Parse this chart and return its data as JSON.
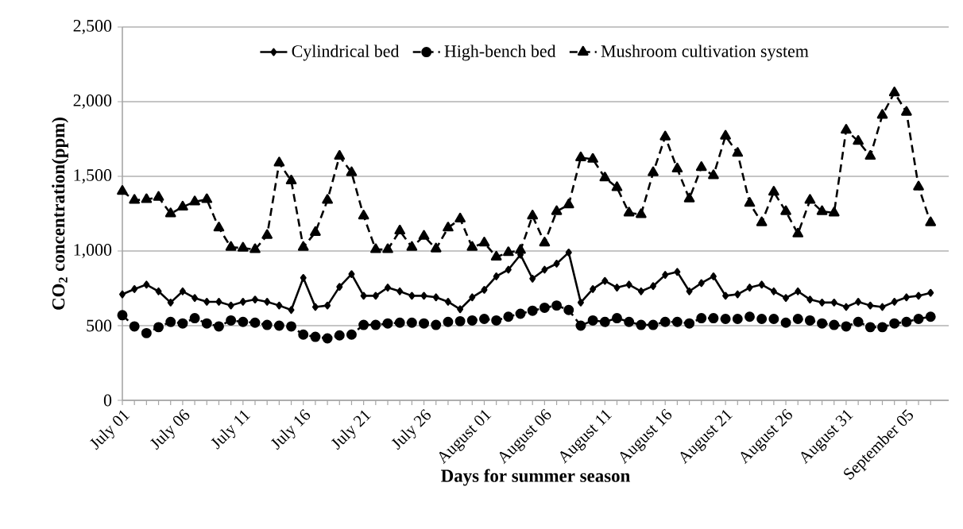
{
  "chart_data": {
    "type": "line",
    "xlabel": "Days for summer season",
    "ylabel": "CO$_{2}$ concentration(ppm)",
    "categories": [
      "July 01",
      null,
      null,
      null,
      null,
      "July 06",
      null,
      null,
      null,
      null,
      "July 11",
      null,
      null,
      null,
      null,
      "July 16",
      null,
      null,
      null,
      null,
      "July 21",
      null,
      null,
      null,
      null,
      "July 26",
      null,
      null,
      null,
      null,
      "August 01",
      null,
      null,
      null,
      null,
      "August 06",
      null,
      null,
      null,
      null,
      "August 11",
      null,
      null,
      null,
      null,
      "August 16",
      null,
      null,
      null,
      null,
      "August 21",
      null,
      null,
      null,
      null,
      "August 26",
      null,
      null,
      null,
      null,
      "August 31",
      null,
      null,
      null,
      null,
      "September 05",
      null,
      null
    ],
    "series": [
      {
        "name": "Cylindrical bed",
        "color": "#000000",
        "marker": "diamond",
        "line_style": "solid",
        "values": [
          710,
          745,
          775,
          730,
          655,
          730,
          685,
          660,
          660,
          635,
          660,
          675,
          660,
          635,
          605,
          820,
          625,
          635,
          760,
          845,
          700,
          700,
          755,
          730,
          700,
          700,
          690,
          660,
          610,
          690,
          740,
          830,
          875,
          975,
          815,
          875,
          915,
          990,
          655,
          745,
          800,
          755,
          775,
          730,
          765,
          840,
          860,
          730,
          785,
          830,
          700,
          710,
          755,
          775,
          730,
          685,
          730,
          675,
          655,
          655,
          625,
          660,
          635,
          625,
          660,
          690,
          700,
          720
        ]
      },
      {
        "name": "High-bench bed",
        "color": "#000000",
        "marker": "circle",
        "line_style": "dashed",
        "values": [
          570,
          495,
          450,
          490,
          525,
          515,
          550,
          515,
          495,
          535,
          525,
          520,
          505,
          500,
          495,
          440,
          425,
          415,
          435,
          440,
          505,
          505,
          515,
          520,
          520,
          515,
          505,
          525,
          530,
          535,
          545,
          535,
          560,
          580,
          600,
          620,
          635,
          605,
          500,
          535,
          525,
          550,
          525,
          505,
          505,
          525,
          525,
          515,
          550,
          550,
          545,
          545,
          560,
          545,
          545,
          520,
          545,
          535,
          515,
          505,
          495,
          525,
          490,
          490,
          515,
          525,
          545,
          560
        ]
      },
      {
        "name": "Mushroom cultivation system",
        "color": "#000000",
        "marker": "triangle",
        "line_style": "dashed",
        "values": [
          1400,
          1340,
          1345,
          1360,
          1250,
          1295,
          1330,
          1345,
          1155,
          1025,
          1020,
          1010,
          1105,
          1590,
          1470,
          1025,
          1125,
          1340,
          1635,
          1525,
          1235,
          1010,
          1010,
          1135,
          1025,
          1100,
          1015,
          1155,
          1215,
          1025,
          1055,
          960,
          990,
          1005,
          1235,
          1055,
          1265,
          1310,
          1625,
          1615,
          1490,
          1425,
          1255,
          1245,
          1525,
          1765,
          1550,
          1350,
          1560,
          1505,
          1770,
          1655,
          1320,
          1190,
          1395,
          1265,
          1115,
          1340,
          1265,
          1255,
          1810,
          1735,
          1635,
          1910,
          2060,
          1930,
          1430,
          1190
        ]
      }
    ],
    "ylim": [
      0,
      2500
    ],
    "yticks": [
      {
        "value": 0,
        "label": "0"
      },
      {
        "value": 500,
        "label": "500"
      },
      {
        "value": 1000,
        "label": "1,000"
      },
      {
        "value": 1500,
        "label": "1,500"
      },
      {
        "value": 2000,
        "label": "2,000"
      },
      {
        "value": 2500,
        "label": "2,500"
      }
    ],
    "grid": "y",
    "legend": "top"
  }
}
